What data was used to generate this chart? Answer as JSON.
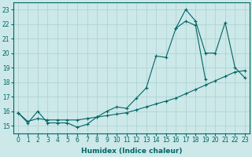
{
  "xlabel": "Humidex (Indice chaleur)",
  "line_color": "#006666",
  "bg_color": "#cce8e8",
  "grid_color": "#aad0d0",
  "curve1_x": [
    0,
    1,
    2,
    3,
    4,
    5,
    6,
    7,
    8,
    9,
    10,
    11,
    12,
    13,
    14,
    15,
    16,
    17,
    18,
    19
  ],
  "curve1_y": [
    15.9,
    15.2,
    16.0,
    15.2,
    15.2,
    15.2,
    14.9,
    15.1,
    15.6,
    16.0,
    16.3,
    16.2,
    16.9,
    17.6,
    19.8,
    19.7,
    21.7,
    22.2,
    21.9,
    18.2
  ],
  "curve2_x": [
    0,
    1,
    2,
    3,
    4,
    5,
    6,
    7,
    8,
    9,
    10,
    11,
    12,
    13,
    14,
    15,
    16,
    17,
    18,
    19,
    20,
    21,
    22,
    23
  ],
  "curve2_y": [
    15.9,
    15.3,
    15.5,
    15.4,
    15.4,
    15.4,
    15.4,
    15.5,
    15.6,
    15.7,
    15.8,
    15.9,
    16.1,
    16.3,
    16.5,
    16.7,
    16.9,
    17.2,
    17.5,
    17.8,
    18.1,
    18.4,
    18.7,
    18.8
  ],
  "curve3_x": [
    16,
    17,
    18,
    19,
    20,
    21,
    22,
    23
  ],
  "curve3_y": [
    21.7,
    23.0,
    22.2,
    20.0,
    20.0,
    22.1,
    19.0,
    18.3
  ],
  "xlim": [
    -0.5,
    23.5
  ],
  "ylim": [
    14.5,
    23.5
  ],
  "yticks": [
    15,
    16,
    17,
    18,
    19,
    20,
    21,
    22,
    23
  ],
  "xticks": [
    0,
    1,
    2,
    3,
    4,
    5,
    6,
    7,
    8,
    9,
    10,
    11,
    12,
    13,
    14,
    15,
    16,
    17,
    18,
    19,
    20,
    21,
    22,
    23
  ],
  "tick_fontsize": 5.5,
  "xlabel_fontsize": 6.5
}
